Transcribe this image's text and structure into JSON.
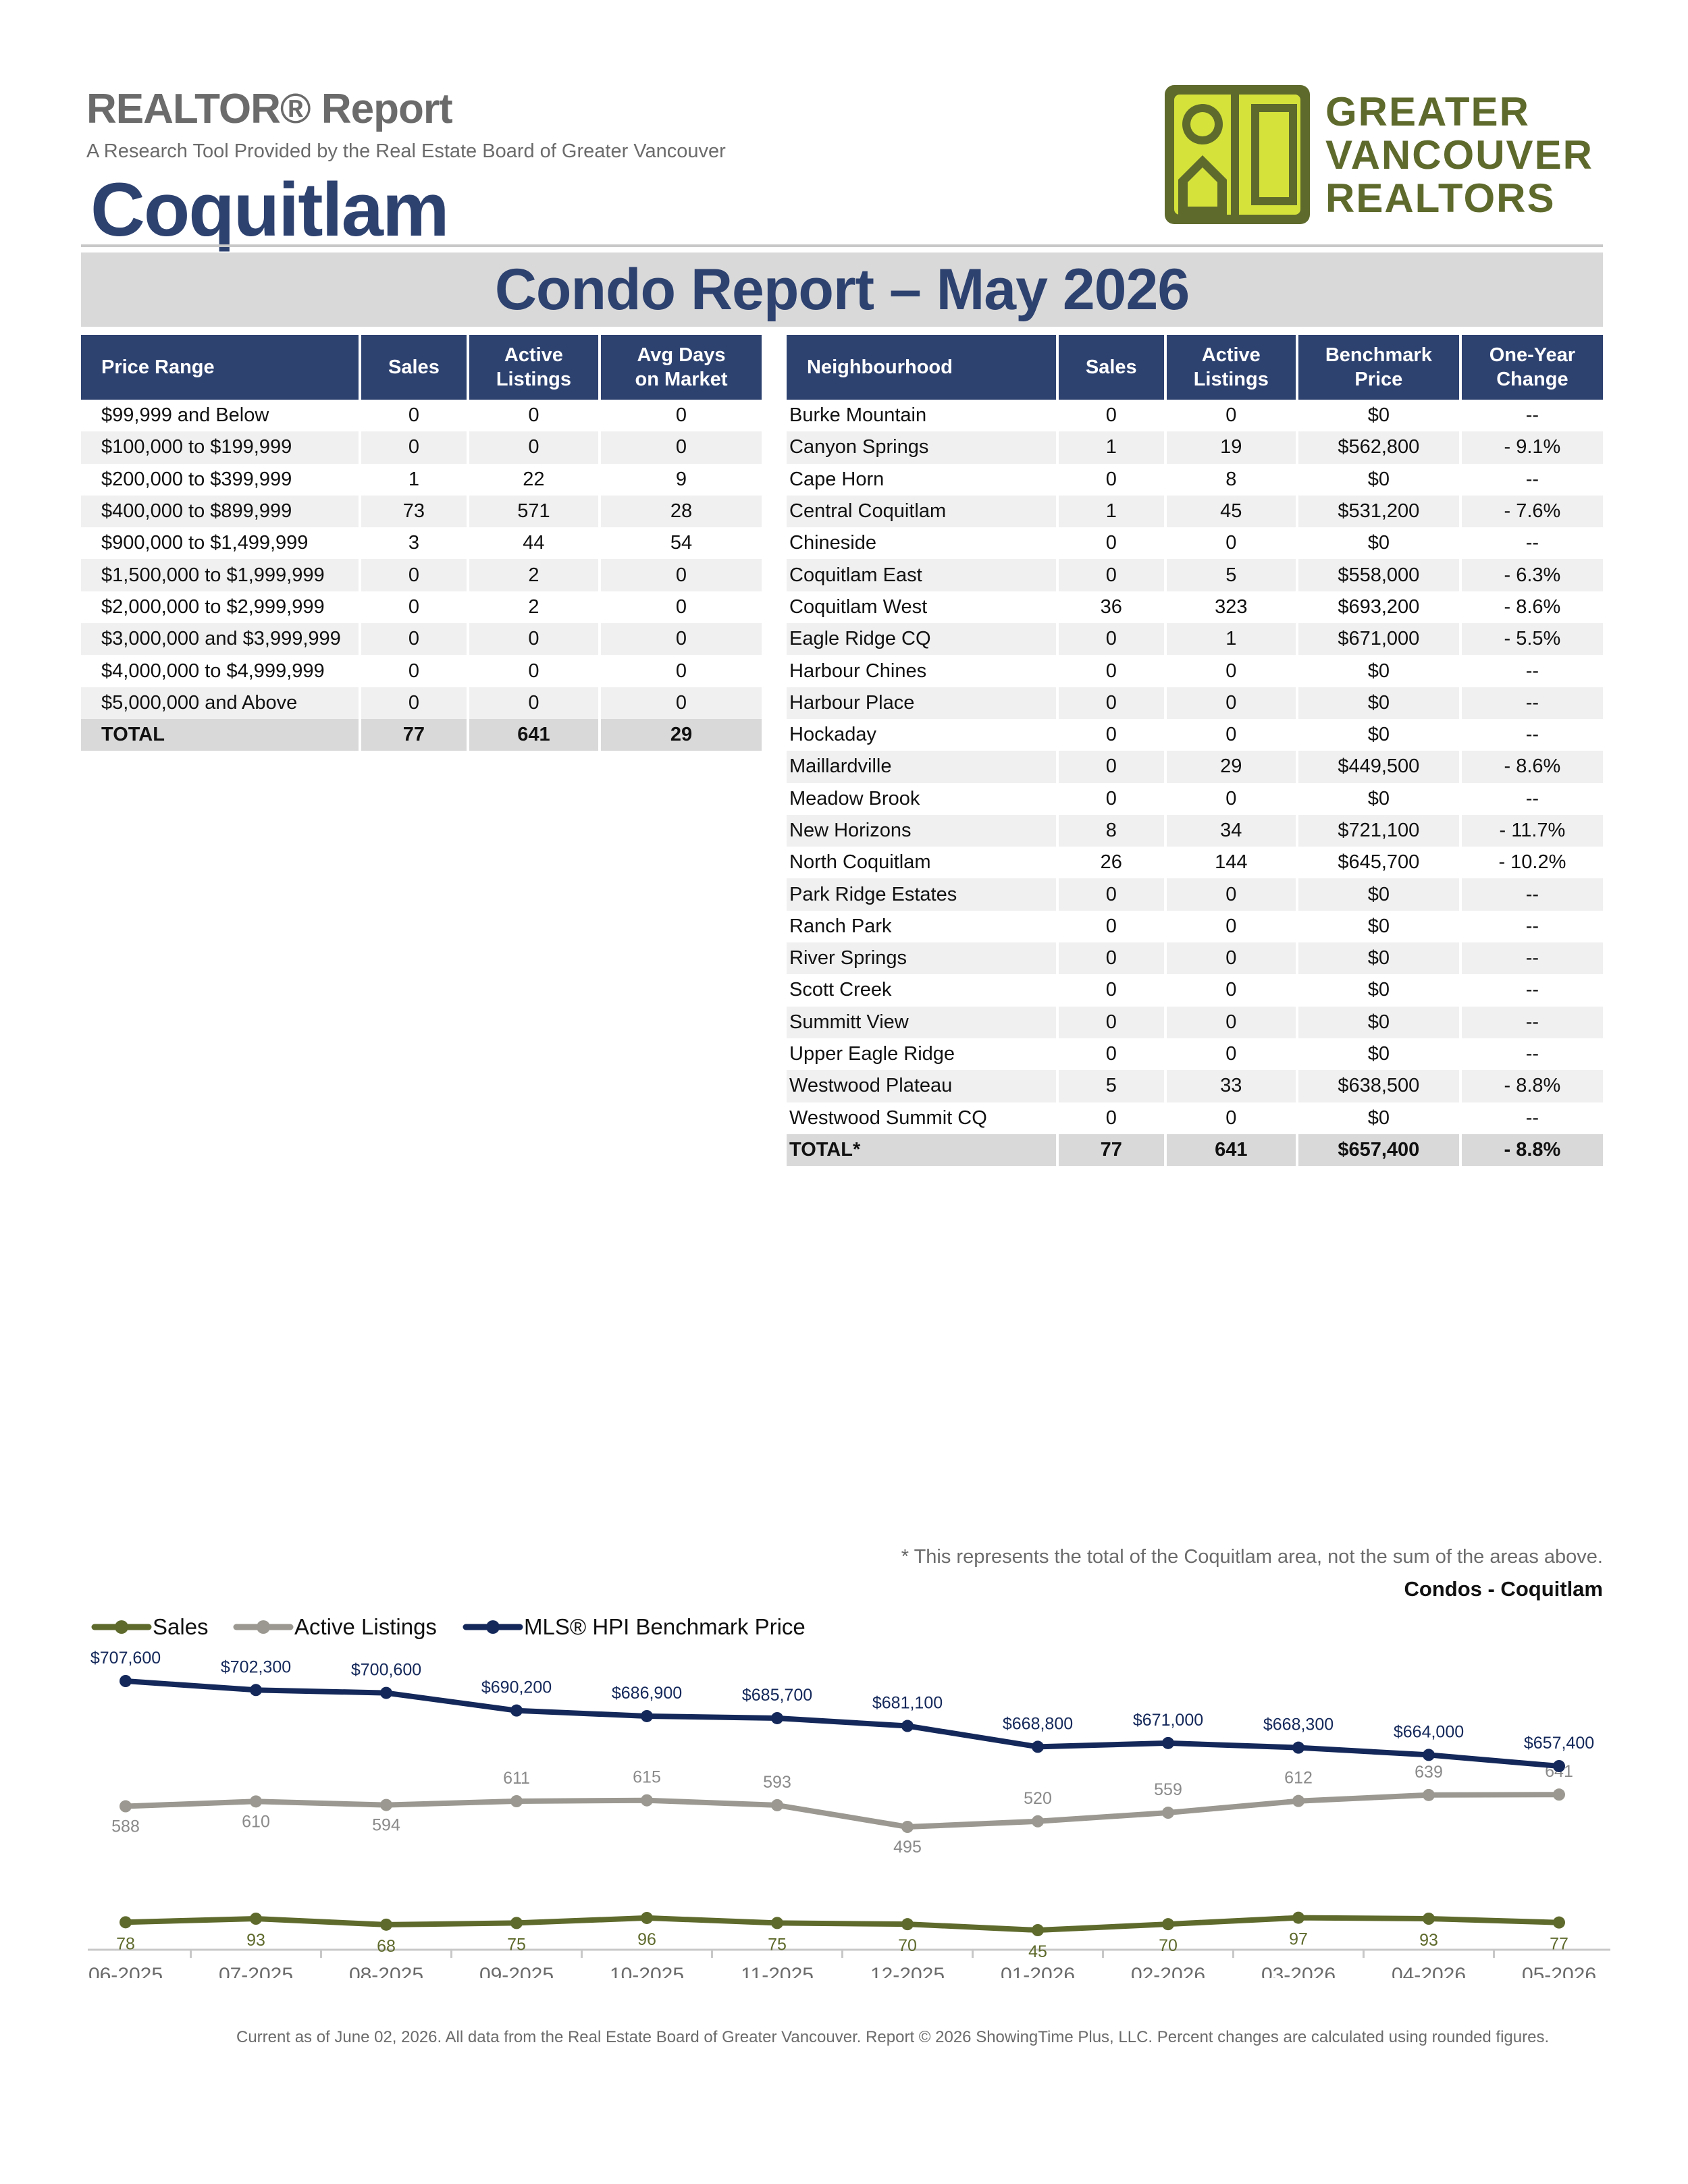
{
  "header": {
    "title": "REALTOR® Report",
    "subtitle": "A Research Tool Provided by the Real Estate Board of Greater Vancouver",
    "area": "Coquitlam",
    "logo_lines": [
      "GREATER",
      "VANCOUVER",
      "REALTORS"
    ]
  },
  "banner": "Condo Report – May 2026",
  "price_table": {
    "headers": [
      "Price Range",
      "Sales",
      "Active Listings",
      "Avg Days on Market"
    ],
    "rows": [
      [
        "$99,999 and Below",
        "0",
        "0",
        "0"
      ],
      [
        "$100,000 to $199,999",
        "0",
        "0",
        "0"
      ],
      [
        "$200,000 to $399,999",
        "1",
        "22",
        "9"
      ],
      [
        "$400,000 to $899,999",
        "73",
        "571",
        "28"
      ],
      [
        "$900,000 to $1,499,999",
        "3",
        "44",
        "54"
      ],
      [
        "$1,500,000 to $1,999,999",
        "0",
        "2",
        "0"
      ],
      [
        "$2,000,000 to $2,999,999",
        "0",
        "2",
        "0"
      ],
      [
        "$3,000,000 and $3,999,999",
        "0",
        "0",
        "0"
      ],
      [
        "$4,000,000 to $4,999,999",
        "0",
        "0",
        "0"
      ],
      [
        "$5,000,000 and Above",
        "0",
        "0",
        "0"
      ]
    ],
    "total": [
      "TOTAL",
      "77",
      "641",
      "29"
    ]
  },
  "neighbourhood_table": {
    "headers": [
      "Neighbourhood",
      "Sales",
      "Active Listings",
      "Benchmark Price",
      "One-Year Change"
    ],
    "rows": [
      [
        "Burke Mountain",
        "0",
        "0",
        "$0",
        "--"
      ],
      [
        "Canyon Springs",
        "1",
        "19",
        "$562,800",
        "- 9.1%"
      ],
      [
        "Cape Horn",
        "0",
        "8",
        "$0",
        "--"
      ],
      [
        "Central Coquitlam",
        "1",
        "45",
        "$531,200",
        "- 7.6%"
      ],
      [
        "Chineside",
        "0",
        "0",
        "$0",
        "--"
      ],
      [
        "Coquitlam East",
        "0",
        "5",
        "$558,000",
        "- 6.3%"
      ],
      [
        "Coquitlam West",
        "36",
        "323",
        "$693,200",
        "- 8.6%"
      ],
      [
        "Eagle Ridge CQ",
        "0",
        "1",
        "$671,000",
        "- 5.5%"
      ],
      [
        "Harbour Chines",
        "0",
        "0",
        "$0",
        "--"
      ],
      [
        "Harbour Place",
        "0",
        "0",
        "$0",
        "--"
      ],
      [
        "Hockaday",
        "0",
        "0",
        "$0",
        "--"
      ],
      [
        "Maillardville",
        "0",
        "29",
        "$449,500",
        "- 8.6%"
      ],
      [
        "Meadow Brook",
        "0",
        "0",
        "$0",
        "--"
      ],
      [
        "New Horizons",
        "8",
        "34",
        "$721,100",
        "- 11.7%"
      ],
      [
        "North Coquitlam",
        "26",
        "144",
        "$645,700",
        "- 10.2%"
      ],
      [
        "Park Ridge Estates",
        "0",
        "0",
        "$0",
        "--"
      ],
      [
        "Ranch Park",
        "0",
        "0",
        "$0",
        "--"
      ],
      [
        "River Springs",
        "0",
        "0",
        "$0",
        "--"
      ],
      [
        "Scott Creek",
        "0",
        "0",
        "$0",
        "--"
      ],
      [
        "Summitt View",
        "0",
        "0",
        "$0",
        "--"
      ],
      [
        "Upper Eagle Ridge",
        "0",
        "0",
        "$0",
        "--"
      ],
      [
        "Westwood Plateau",
        "5",
        "33",
        "$638,500",
        "- 8.8%"
      ],
      [
        "Westwood Summit CQ",
        "0",
        "0",
        "$0",
        "--"
      ]
    ],
    "total": [
      "TOTAL*",
      "77",
      "641",
      "$657,400",
      "- 8.8%"
    ]
  },
  "footnote": "* This represents the total of the Coquitlam area, not the sum of the areas above.",
  "chart_title": "Condos - Coquitlam",
  "chart_data": {
    "type": "line",
    "categories": [
      "06-2025",
      "07-2025",
      "08-2025",
      "09-2025",
      "10-2025",
      "11-2025",
      "12-2025",
      "01-2026",
      "02-2026",
      "03-2026",
      "04-2026",
      "05-2026"
    ],
    "series": [
      {
        "name": "Sales",
        "color": "#5e6a2c",
        "values": [
          78,
          93,
          68,
          75,
          96,
          75,
          70,
          45,
          70,
          97,
          93,
          77
        ],
        "labels": [
          "78",
          "93",
          "68",
          "75",
          "96",
          "75",
          "70",
          "45",
          "70",
          "97",
          "93",
          "77"
        ]
      },
      {
        "name": "Active Listings",
        "color": "#9a9890",
        "values": [
          588,
          610,
          594,
          611,
          615,
          593,
          495,
          520,
          559,
          612,
          639,
          641
        ],
        "labels": [
          "588",
          "610",
          "594",
          "611",
          "615",
          "593",
          "495",
          "520",
          "559",
          "612",
          "639",
          "641"
        ]
      },
      {
        "name": "MLS® HPI Benchmark Price",
        "color": "#14285a",
        "values": [
          707600,
          702300,
          700600,
          690200,
          686900,
          685700,
          681100,
          668800,
          671000,
          668300,
          664000,
          657400
        ],
        "labels": [
          "$707,600",
          "$702,300",
          "$700,600",
          "$690,200",
          "$686,900",
          "$685,700",
          "$681,100",
          "$668,800",
          "$671,000",
          "$668,300",
          "$664,000",
          "$657,400"
        ]
      }
    ],
    "legend": "top-left",
    "grid": false
  },
  "footer": "Current as of June 02, 2026. All data from the Real Estate Board of Greater Vancouver.  Report © 2026 ShowingTime Plus, LLC. Percent changes are calculated using rounded figures.",
  "colors": {
    "navy": "#2e4270",
    "olive": "#5e6a2c",
    "logo_yellow": "#d4e23a"
  }
}
